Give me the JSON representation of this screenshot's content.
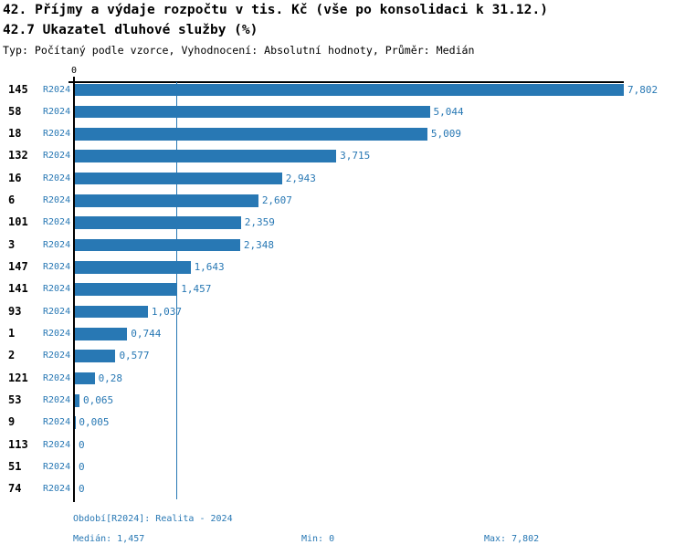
{
  "header": {
    "title": "42. Příjmy a výdaje rozpočtu v tis. Kč (vše po konsolidaci k 31.12.)",
    "subtitle": "42.7 Ukazatel dluhové služby (%)",
    "meta": "Typ: Počítaný podle vzorce, Vyhodnocení: Absolutní hodnoty, Průměr: Medián"
  },
  "colors": {
    "accent_blue": "#2878B4",
    "axis_black": "#000000",
    "background": "#FFFFFF"
  },
  "chart_data": {
    "type": "bar",
    "orientation": "horizontal",
    "title": "42.7 Ukazatel dluhové služby (%)",
    "series_label": "R2024",
    "axis_zero_label": "0",
    "categories": [
      "145",
      "58",
      "18",
      "132",
      "16",
      "6",
      "101",
      "3",
      "147",
      "141",
      "93",
      "1",
      "2",
      "121",
      "53",
      "9",
      "113",
      "51",
      "74"
    ],
    "values": [
      7.802,
      5.044,
      5.009,
      3.715,
      2.943,
      2.607,
      2.359,
      2.348,
      1.643,
      1.457,
      1.037,
      0.744,
      0.577,
      0.28,
      0.065,
      0.005,
      0,
      0,
      0
    ],
    "value_labels": [
      "7,802",
      "5,044",
      "5,009",
      "3,715",
      "2,943",
      "2,607",
      "2,359",
      "2,348",
      "1,643",
      "1,457",
      "1,037",
      "0,744",
      "0,577",
      "0,28",
      "0,065",
      "0,005",
      "0",
      "0",
      "0"
    ],
    "xmin": 0,
    "xmax": 7.802,
    "median_gridline_value": 1.457,
    "grid": "single vertical median line",
    "legend_position": "none"
  },
  "footer": {
    "period": "Období[R2024]: Realita - 2024",
    "median": "Medián: 1,457",
    "min": "Min: 0",
    "max": "Max: 7,802"
  }
}
